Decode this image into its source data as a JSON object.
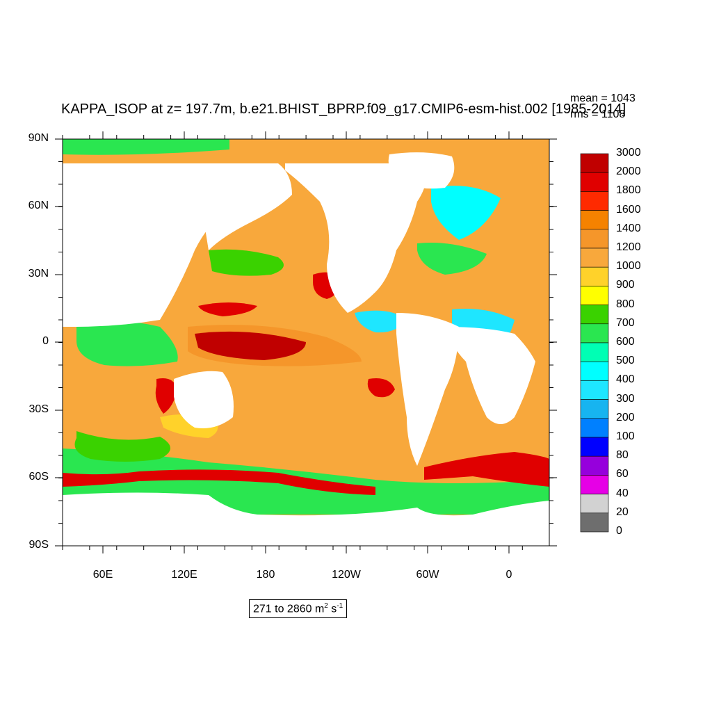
{
  "title": "KAPPA_ISOP at z= 197.7m, b.e21.BHIST_BPRP.f09_g17.CMIP6-esm-hist.002 [1985-2014]",
  "stats": {
    "mean": "mean = 1043",
    "rms": "rms = 1108"
  },
  "range": {
    "text": "271 to 2860 m",
    "exp1": "2",
    "mid": " s",
    "exp2": "-1"
  },
  "y_ticks": [
    "90N",
    "60N",
    "30N",
    "0",
    "30S",
    "60S",
    "90S"
  ],
  "x_ticks": [
    "60E",
    "120E",
    "180",
    "120W",
    "60W",
    "0"
  ],
  "colorbar": {
    "labels": [
      "3000",
      "2000",
      "1800",
      "1600",
      "1400",
      "1200",
      "1000",
      "900",
      "800",
      "700",
      "600",
      "500",
      "400",
      "300",
      "200",
      "100",
      "80",
      "60",
      "40",
      "20",
      "0"
    ],
    "colors": [
      "#c00000",
      "#e00000",
      "#ff2a00",
      "#f58200",
      "#f5962a",
      "#f8a83c",
      "#ffd22a",
      "#ffff00",
      "#3ad200",
      "#2ae650",
      "#00ffb4",
      "#00ffff",
      "#1ee6ff",
      "#17b4f0",
      "#0080ff",
      "#0000ff",
      "#9600dc",
      "#e600e6",
      "#d2d2d2",
      "#6e6e6e"
    ]
  },
  "colors": {
    "land": "#ffffff",
    "base_ocean": "#f8a83c"
  }
}
